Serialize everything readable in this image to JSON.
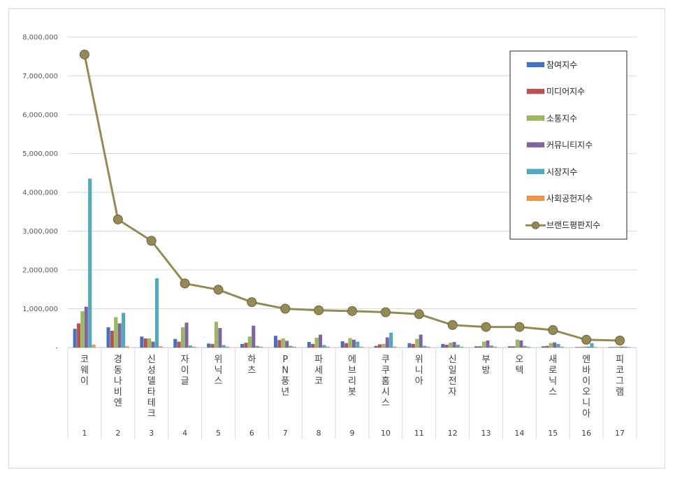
{
  "chart_data": {
    "type": "bar",
    "combo_line_series": "브랜드평판지수",
    "title": "",
    "xlabel": "",
    "ylabel": "",
    "ylim": [
      0,
      8000000
    ],
    "yticks": [
      0,
      1000000,
      2000000,
      3000000,
      4000000,
      5000000,
      6000000,
      7000000,
      8000000
    ],
    "ytick_labels": [
      "-",
      "1,000,000",
      "2,000,000",
      "3,000,000",
      "4,000,000",
      "5,000,000",
      "6,000,000",
      "7,000,000",
      "8,000,000"
    ],
    "grid": true,
    "legend_position": "top-right",
    "categories": [
      "코웨이",
      "경동나비엔",
      "신성델타테크",
      "자이글",
      "위닉스",
      "하츠",
      "PN풍년",
      "파세코",
      "에브리봇",
      "쿠쿠홈시스",
      "위니아",
      "신일전자",
      "부방",
      "오텍",
      "새로닉스",
      "엔바이오니아",
      "피코그램"
    ],
    "ranks": [
      "1",
      "2",
      "3",
      "4",
      "5",
      "6",
      "7",
      "8",
      "9",
      "10",
      "11",
      "12",
      "13",
      "14",
      "15",
      "16",
      "17"
    ],
    "series": [
      {
        "name": "참여지수",
        "color": "#4472c4",
        "values": [
          480000,
          520000,
          280000,
          220000,
          100000,
          90000,
          300000,
          140000,
          160000,
          40000,
          110000,
          90000,
          30000,
          30000,
          30000,
          10000,
          10000
        ]
      },
      {
        "name": "미디어지수",
        "color": "#c0504d",
        "values": [
          620000,
          430000,
          230000,
          150000,
          90000,
          120000,
          190000,
          90000,
          110000,
          80000,
          90000,
          70000,
          30000,
          30000,
          40000,
          10000,
          10000
        ]
      },
      {
        "name": "소통지수",
        "color": "#9bbb59",
        "values": [
          930000,
          780000,
          230000,
          520000,
          660000,
          280000,
          230000,
          250000,
          240000,
          90000,
          220000,
          120000,
          150000,
          200000,
          110000,
          20000,
          20000
        ]
      },
      {
        "name": "커뮤니티지수",
        "color": "#8064a2",
        "values": [
          1050000,
          620000,
          150000,
          640000,
          500000,
          560000,
          170000,
          330000,
          200000,
          260000,
          330000,
          140000,
          180000,
          180000,
          130000,
          20000,
          20000
        ]
      },
      {
        "name": "시장지수",
        "color": "#4bacc6",
        "values": [
          4350000,
          890000,
          1780000,
          50000,
          60000,
          40000,
          40000,
          60000,
          150000,
          380000,
          40000,
          70000,
          50000,
          40000,
          90000,
          110000,
          20000
        ]
      },
      {
        "name": "사회공헌지수",
        "color": "#f79646",
        "values": [
          70000,
          30000,
          30000,
          20000,
          20000,
          20000,
          20000,
          20000,
          20000,
          20000,
          20000,
          20000,
          20000,
          20000,
          20000,
          10000,
          10000
        ]
      }
    ],
    "line_series": {
      "name": "브랜드평판지수",
      "color": "#948a54",
      "values": [
        7550000,
        3300000,
        2750000,
        1650000,
        1490000,
        1170000,
        1000000,
        960000,
        940000,
        910000,
        860000,
        580000,
        530000,
        530000,
        450000,
        200000,
        180000
      ]
    }
  }
}
